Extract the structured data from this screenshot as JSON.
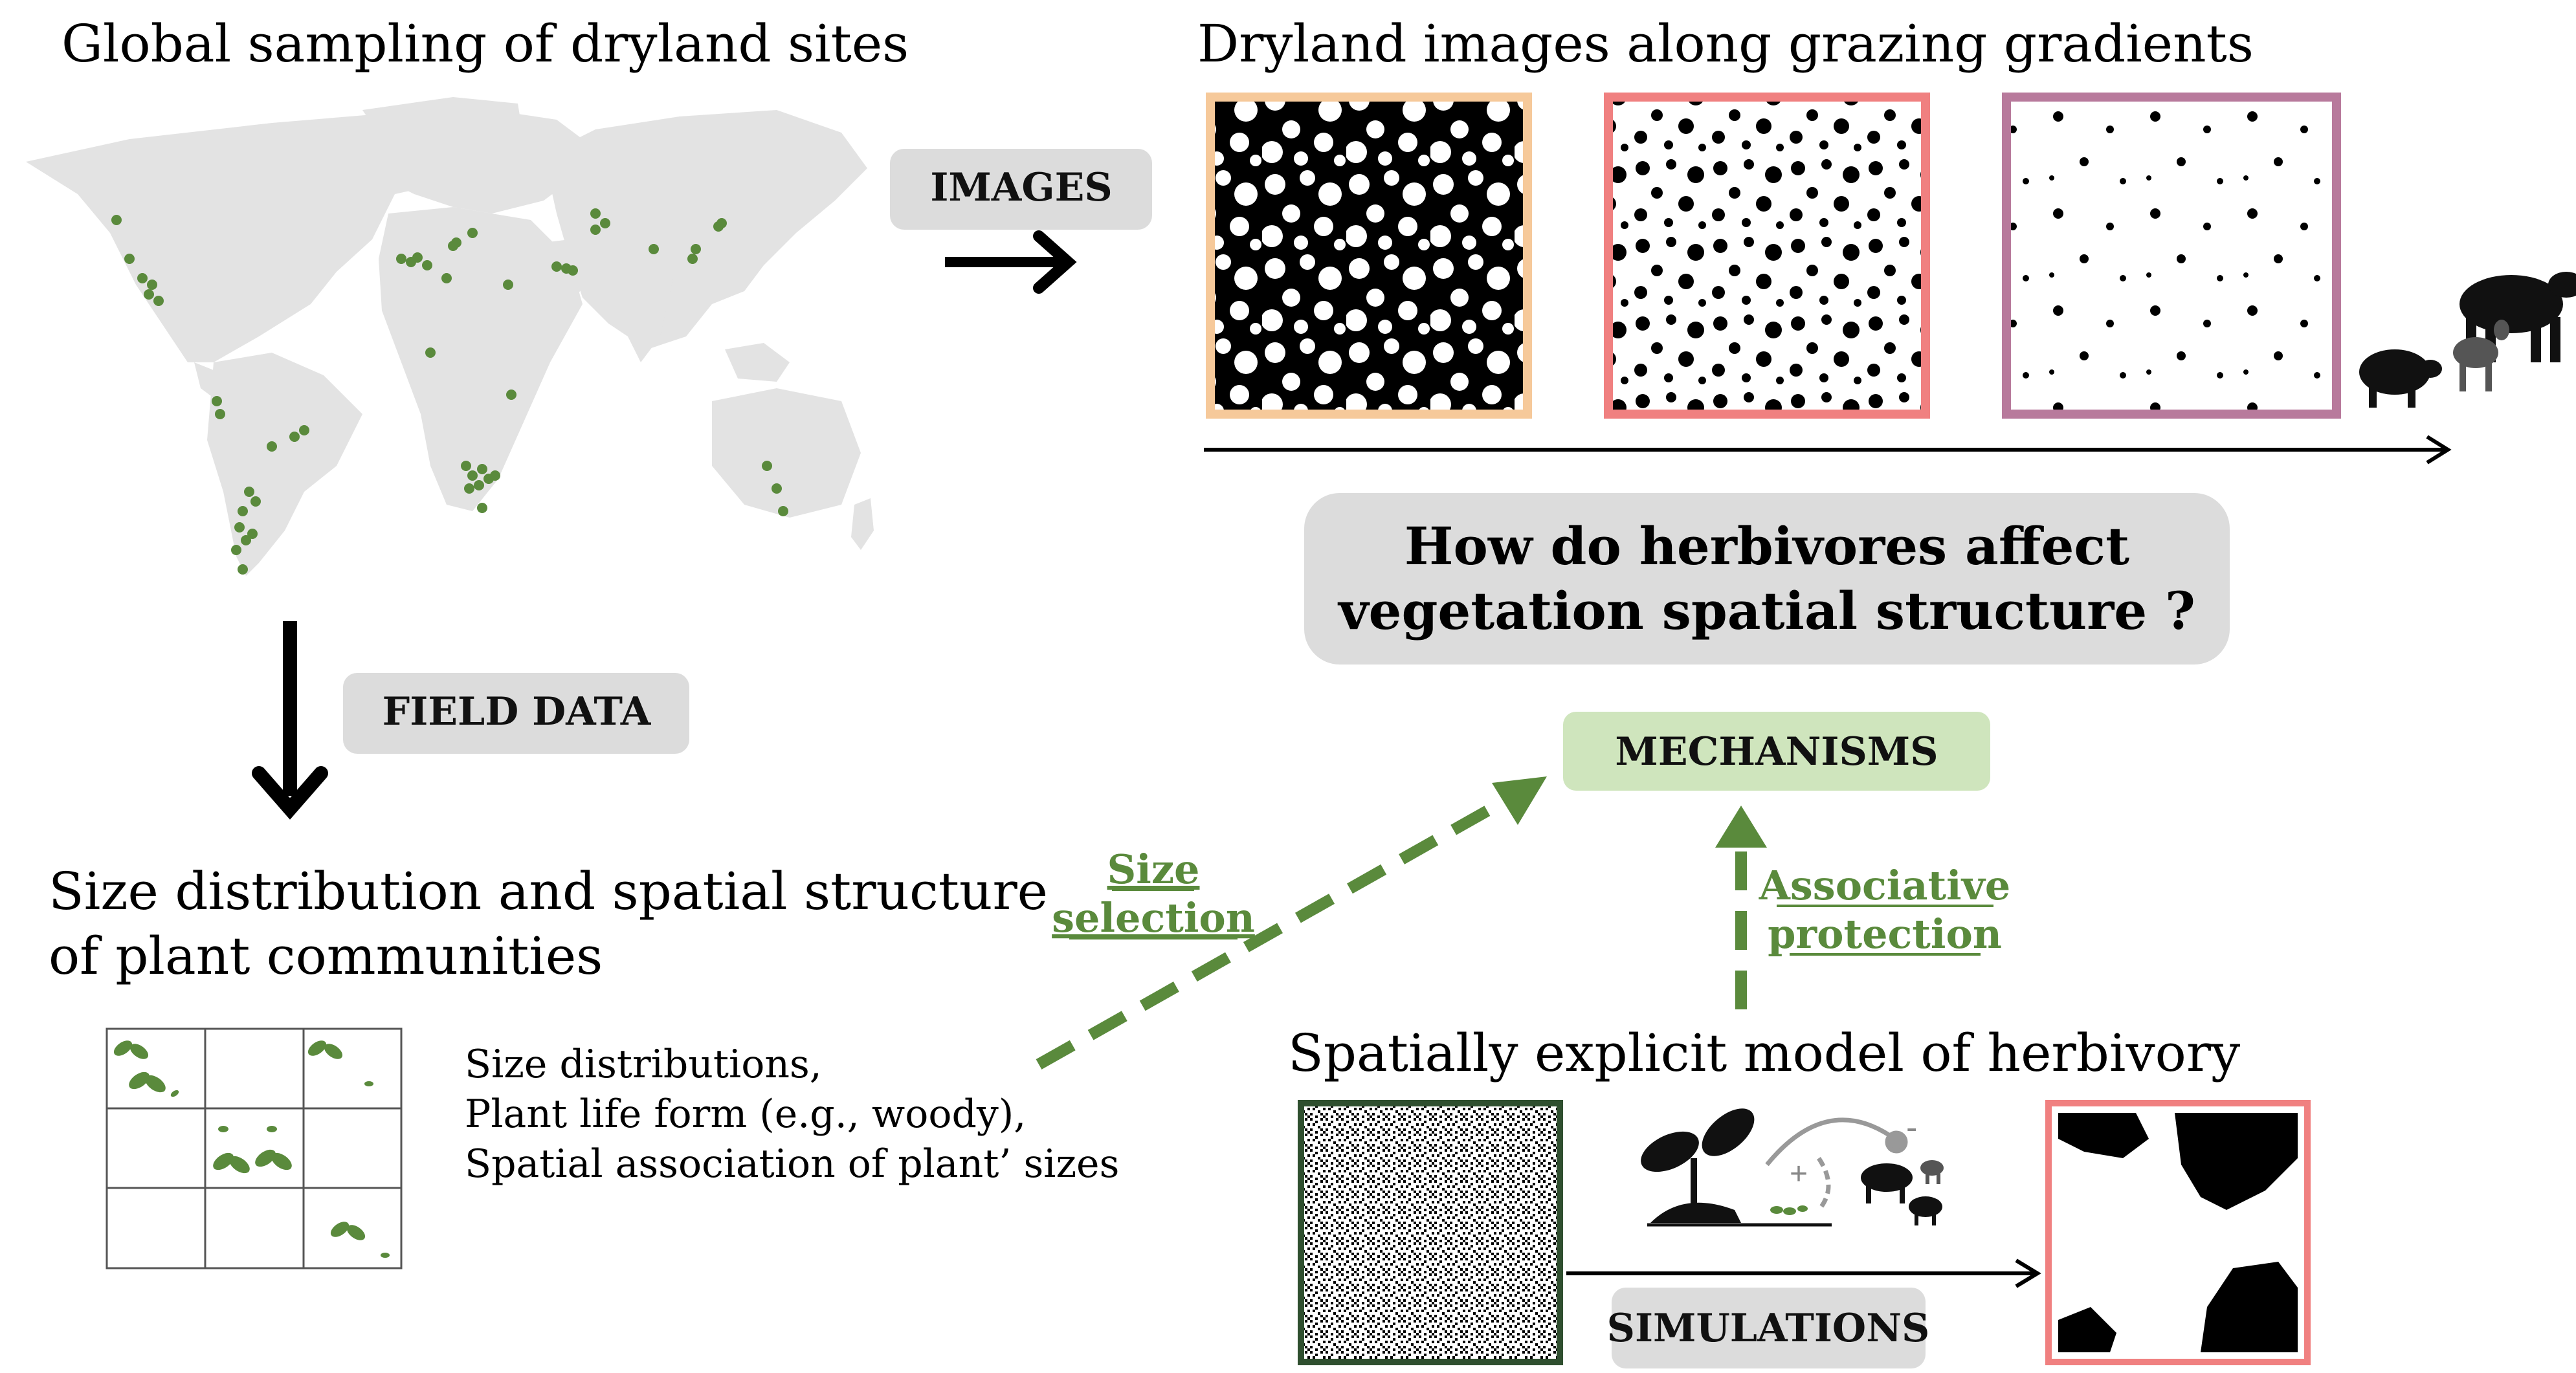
{
  "titles": {
    "global_sampling": "Global sampling of dryland sites",
    "dryland_images": "Dryland images along grazing gradients",
    "size_distribution_line1": "Size distribution and spatial structure",
    "size_distribution_line2": "of plant communities",
    "model": "Spatially explicit model of herbivory"
  },
  "labels": {
    "images": "IMAGES",
    "field_data": "FIELD DATA",
    "mechanisms": "MECHANISMS",
    "simulations": "SIMULATIONS"
  },
  "question": {
    "line1": "How do herbivores affect",
    "line2": "vegetation spatial structure ?"
  },
  "links": {
    "size_selection_line1": "Size",
    "size_selection_line2": "selection",
    "associative_line1": "Associative",
    "associative_line2": "protection"
  },
  "field_items": [
    "Size distributions,",
    "Plant life form (e.g., woody),",
    "Spatial association of plant’ sizes"
  ],
  "model_signs": {
    "plus": "+",
    "minus": "-"
  },
  "colors": {
    "green": "#5a8a3c",
    "light_green_box": "#cfe5bd",
    "grey_box": "#dcdcdc",
    "frame_low": "#f6c99a",
    "frame_mid": "#f08080",
    "frame_high": "#b87a9c",
    "model_frame": "#2f4f2f",
    "sim_frame": "#f08080"
  },
  "icons": [
    "world-map",
    "plant-sprout-icon",
    "cow-icon",
    "sheep-icon",
    "goat-icon",
    "arrow-icon"
  ]
}
